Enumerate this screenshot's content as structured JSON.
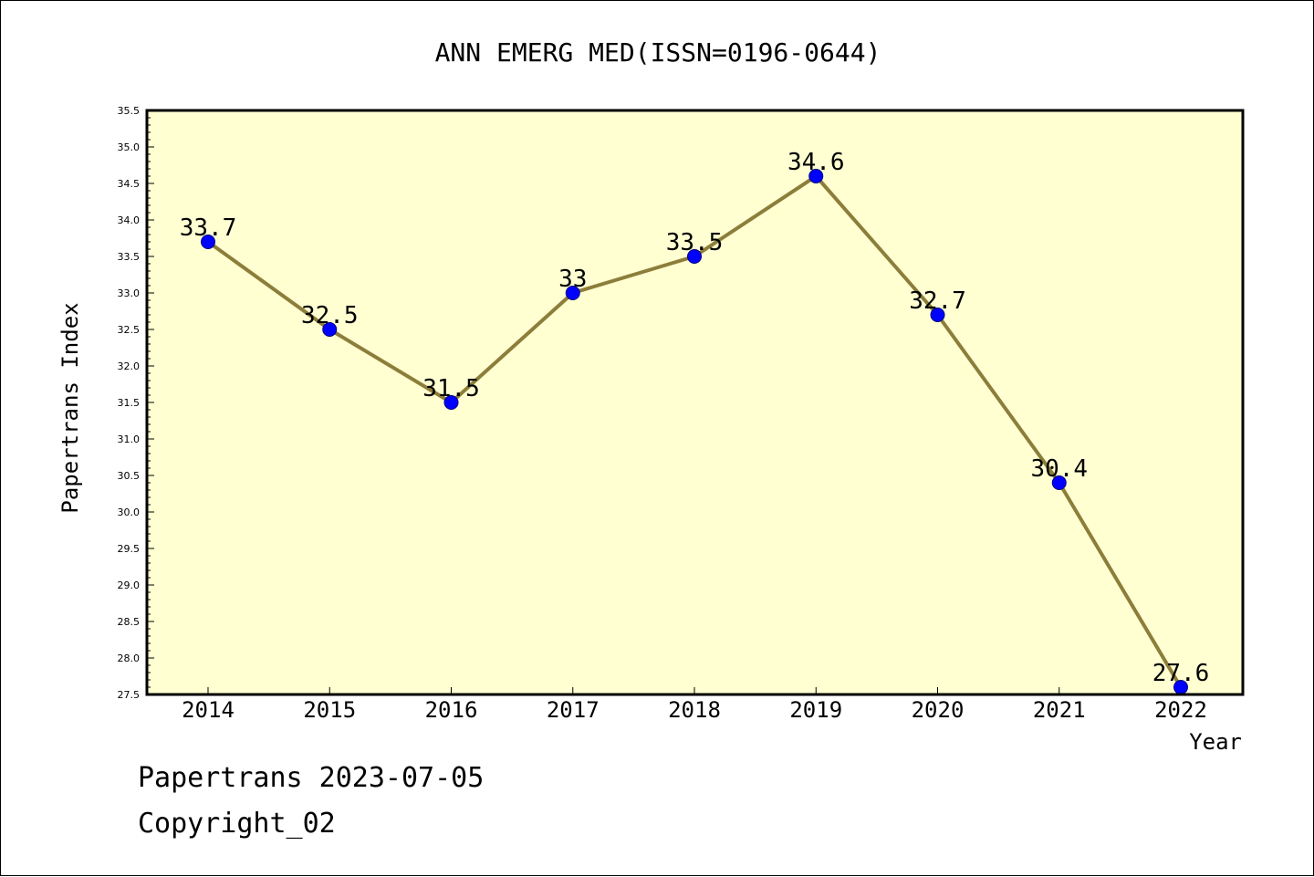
{
  "chart_data": {
    "type": "line",
    "title": "ANN EMERG MED(ISSN=0196-0644)",
    "xlabel": "Year",
    "ylabel": "Papertrans Index",
    "categories": [
      "2014",
      "2015",
      "2016",
      "2017",
      "2018",
      "2019",
      "2020",
      "2021",
      "2022"
    ],
    "series": [
      {
        "values": [
          33.7,
          32.5,
          31.5,
          33,
          33.5,
          34.6,
          32.7,
          30.4,
          27.6
        ],
        "labels": [
          "33.7",
          "32.5",
          "31.5",
          "33",
          "33.5",
          "34.6",
          "32.7",
          "30.4",
          "27.6"
        ]
      }
    ],
    "ylim": [
      27.5,
      35.5
    ],
    "y_ticks": [
      "27.5",
      "28.0",
      "28.5",
      "29.0",
      "29.5",
      "30.0",
      "30.5",
      "31.0",
      "31.5",
      "32.0",
      "32.5",
      "33.0",
      "33.5",
      "34.0",
      "34.5",
      "35.0",
      "35.5"
    ],
    "grid": false,
    "legend": "none",
    "colors": {
      "plot_background": "#ffffd2",
      "line": "#8c7e3a",
      "marker": "#0000ff"
    }
  },
  "footer": {
    "date_line": "Papertrans 2023-07-05",
    "copyright_line": "Copyright_02"
  }
}
